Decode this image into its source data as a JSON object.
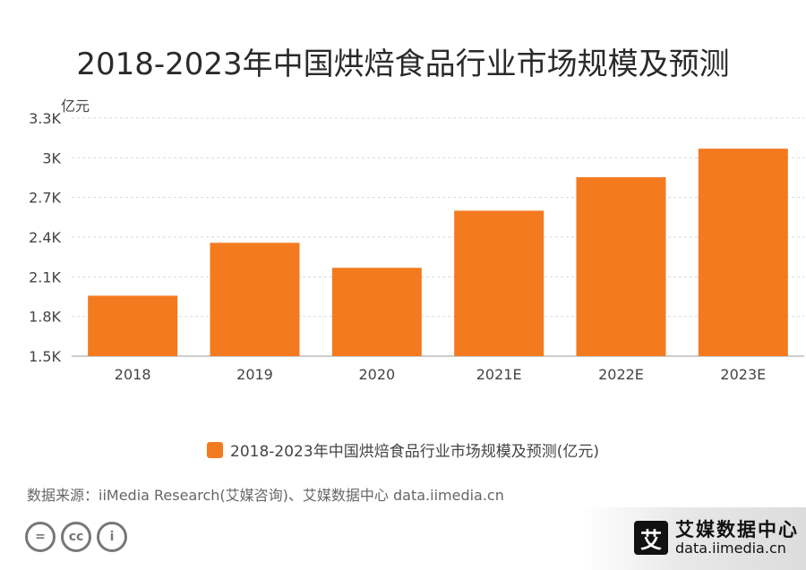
{
  "title": "2018-2023年中国烘焙食品行业市场规模及预测",
  "source": "数据来源：iiMedia Research(艾媒咨询)、艾媒数据中心 data.iimedia.cn",
  "brand": {
    "name": "艾媒数据中心",
    "url": "data.iimedia.cn",
    "logo_char": "艾"
  },
  "cc_icons": [
    {
      "name": "cc-equal-icon",
      "glyph": "="
    },
    {
      "name": "cc-cc-icon",
      "glyph": "cc"
    },
    {
      "name": "cc-person-icon",
      "glyph": "i"
    }
  ],
  "colors": {
    "bar": "#F47A20",
    "grid": "#d9d9d9",
    "axis": "#999999"
  },
  "chart_data": {
    "type": "bar",
    "title": "2018-2023年中国烘焙食品行业市场规模及预测",
    "ylabel": "亿元",
    "xlabel": "",
    "categories": [
      "2018",
      "2019",
      "2020",
      "2021E",
      "2022E",
      "2023E"
    ],
    "values": [
      1957,
      2357,
      2168,
      2600,
      2853,
      3069
    ],
    "ylim": [
      1500,
      3300
    ],
    "yticks": [
      1500,
      1800,
      2100,
      2400,
      2700,
      3000,
      3300
    ],
    "ytick_labels": [
      "1.5K",
      "1.8K",
      "2.1K",
      "2.4K",
      "2.7K",
      "3K",
      "3.3K"
    ],
    "legend": [
      "2018-2023年中国烘焙食品行业市场规模及预测(亿元)"
    ],
    "legend_position": "bottom",
    "grid": true
  }
}
